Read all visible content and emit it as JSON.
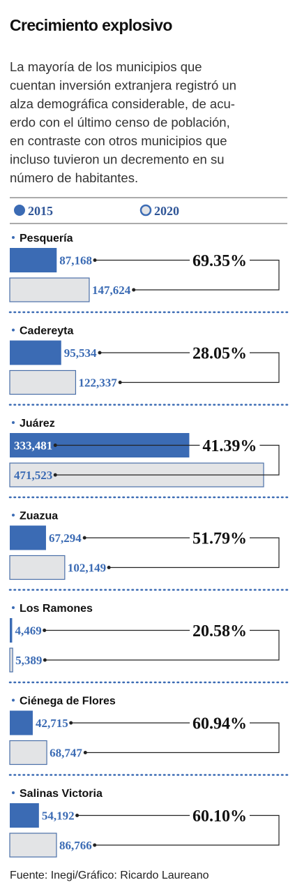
{
  "chart_data": {
    "type": "bar",
    "orientation": "horizontal",
    "title": "Crecimiento explosivo",
    "subtitle_lines": [
      "La mayoría de los municipios que",
      "cuentan inversión extranjera registró un",
      "alza demográfica considerable, de acu-",
      "erdo con el último censo de población,",
      "en contraste con otros municipios que",
      "incluso tuvieron un decremento en su",
      "número de habitantes."
    ],
    "categories": [
      "Pesquería",
      "Cadereyta",
      "Juárez",
      "Zuazua",
      "Los Ramones",
      "Ciénega de Flores",
      "Salinas Victoria"
    ],
    "series": [
      {
        "name": "2015",
        "color": "#3b6bb4",
        "values": [
          87168,
          95534,
          333481,
          67294,
          4469,
          42715,
          54192
        ],
        "value_labels": [
          "87,168",
          "95,534",
          "333,481",
          "67,294",
          "4,469",
          "42,715",
          "54,192"
        ]
      },
      {
        "name": "2020",
        "color": "#e3e4e6",
        "values": [
          147624,
          122337,
          471523,
          102149,
          5389,
          68747,
          86766
        ],
        "value_labels": [
          "147,624",
          "122,337",
          "471,523",
          "102,149",
          "5,389",
          "68,747",
          "86,766"
        ]
      }
    ],
    "growth_values": [
      69.35,
      28.05,
      41.39,
      51.79,
      20.58,
      60.94,
      60.1
    ],
    "growth_labels": [
      "69.35%",
      "28.05%",
      "41.39%",
      "51.79%",
      "20.58%",
      "60.94%",
      "60.10%"
    ],
    "source": "Fuente: Inegi/Gráfico: Ricardo Laureano"
  }
}
